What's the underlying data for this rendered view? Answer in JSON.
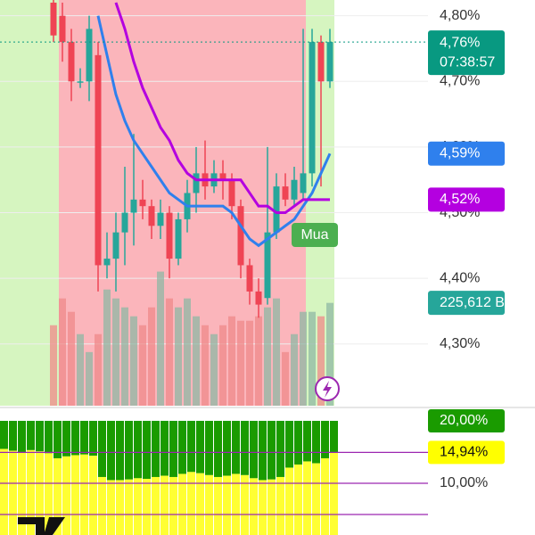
{
  "chart_data": {
    "type": "candlestick",
    "ylim": [
      4.206,
      4.824
    ],
    "yticks": [
      {
        "value": 4.8,
        "label": "4,80%"
      },
      {
        "value": 4.7,
        "label": "4,70%"
      },
      {
        "value": 4.6,
        "label": "4,60%"
      },
      {
        "value": 4.5,
        "label": "4,50%"
      },
      {
        "value": 4.4,
        "label": "4,40%"
      },
      {
        "value": 4.3,
        "label": "4,30%"
      }
    ],
    "grid": true,
    "up_color": "#26a69a",
    "down_color": "#ef4454",
    "open": [
      4.82,
      4.8,
      4.76,
      4.7,
      4.7,
      4.74,
      4.42,
      4.43,
      4.47,
      4.5,
      4.52,
      4.51,
      4.48,
      4.5,
      4.43,
      4.49,
      4.53,
      4.56,
      4.54,
      4.56,
      4.55,
      4.51,
      4.42,
      4.38,
      4.37,
      4.47,
      4.54,
      4.52,
      4.53,
      4.56,
      4.76,
      4.7
    ],
    "high": [
      4.83,
      4.82,
      4.78,
      4.72,
      4.8,
      4.76,
      4.47,
      4.5,
      4.57,
      4.62,
      4.55,
      4.52,
      4.52,
      4.51,
      4.5,
      4.55,
      4.6,
      4.61,
      4.58,
      4.58,
      4.56,
      4.52,
      4.43,
      4.4,
      4.6,
      4.56,
      4.56,
      4.57,
      4.78,
      4.78,
      4.77,
      4.78
    ],
    "low": [
      4.76,
      4.73,
      4.67,
      4.69,
      4.67,
      4.38,
      4.4,
      4.38,
      4.42,
      4.45,
      4.49,
      4.46,
      4.46,
      4.4,
      4.42,
      4.47,
      4.5,
      4.52,
      4.53,
      4.52,
      4.49,
      4.4,
      4.36,
      4.34,
      4.36,
      4.46,
      4.51,
      4.51,
      4.52,
      4.54,
      4.54,
      4.69
    ],
    "close": [
      4.77,
      4.76,
      4.7,
      4.7,
      4.78,
      4.42,
      4.43,
      4.47,
      4.5,
      4.52,
      4.51,
      4.48,
      4.5,
      4.43,
      4.49,
      4.53,
      4.56,
      4.54,
      4.56,
      4.55,
      4.51,
      4.42,
      4.38,
      4.36,
      4.47,
      4.54,
      4.52,
      4.55,
      4.56,
      4.76,
      4.7,
      4.76
    ],
    "moving_averages": [
      {
        "color": "#2f80ed",
        "value_label": "4,59%",
        "values": [
          null,
          null,
          null,
          null,
          null,
          4.8,
          4.74,
          4.68,
          4.64,
          4.61,
          4.59,
          4.57,
          4.55,
          4.53,
          4.52,
          4.51,
          4.51,
          4.51,
          4.51,
          4.51,
          4.5,
          4.48,
          4.46,
          4.45,
          4.46,
          4.47,
          4.48,
          4.49,
          4.51,
          4.53,
          4.56,
          4.59
        ]
      },
      {
        "color": "#b400e0",
        "value_label": "4,52%",
        "values": [
          null,
          null,
          null,
          null,
          null,
          null,
          null,
          4.82,
          4.78,
          4.73,
          4.69,
          4.66,
          4.63,
          4.61,
          4.58,
          4.56,
          4.55,
          4.55,
          4.55,
          4.55,
          4.55,
          4.55,
          4.53,
          4.51,
          4.51,
          4.5,
          4.5,
          4.51,
          4.52,
          4.52,
          4.52,
          4.52
        ]
      }
    ],
    "last_price": {
      "value": 4.76,
      "label": "4,76%",
      "time": "07:38:57",
      "color": "#089981"
    },
    "signal": "Mua",
    "volume": {
      "ylim": [
        0,
        450000
      ],
      "last_label": "225,612 B",
      "values": [
        176600,
        235400,
        206000,
        157000,
        117700,
        157000,
        255000,
        235400,
        215800,
        196200,
        176600,
        215800,
        294300,
        235400,
        215800,
        235400,
        196200,
        176600,
        157000,
        176600,
        196200,
        186400,
        186400,
        196200,
        215800,
        235400,
        117700,
        157000,
        206000,
        206000,
        196200,
        225612
      ]
    },
    "indicator": {
      "type": "bar",
      "ylim": [
        1.71,
        21.71
      ],
      "top": 20,
      "yticks": [
        {
          "value": 20,
          "label": "20,00%"
        },
        {
          "value": 10,
          "label": "10,00%"
        }
      ],
      "levels": [
        5
      ],
      "value_label": {
        "value": 14.94,
        "label": "14,94%"
      },
      "values": [
        15.5,
        15.2,
        15.0,
        15.3,
        15.1,
        14.8,
        14.0,
        14.3,
        14.5,
        14.6,
        14.4,
        11.0,
        10.5,
        10.5,
        10.6,
        10.8,
        10.7,
        11.0,
        11.2,
        11.0,
        11.5,
        11.8,
        11.6,
        11.3,
        11.0,
        11.2,
        11.5,
        11.3,
        10.8,
        10.5,
        10.6,
        11.0,
        12.5,
        13.0,
        13.5,
        13.2,
        14.0,
        14.94
      ]
    }
  }
}
